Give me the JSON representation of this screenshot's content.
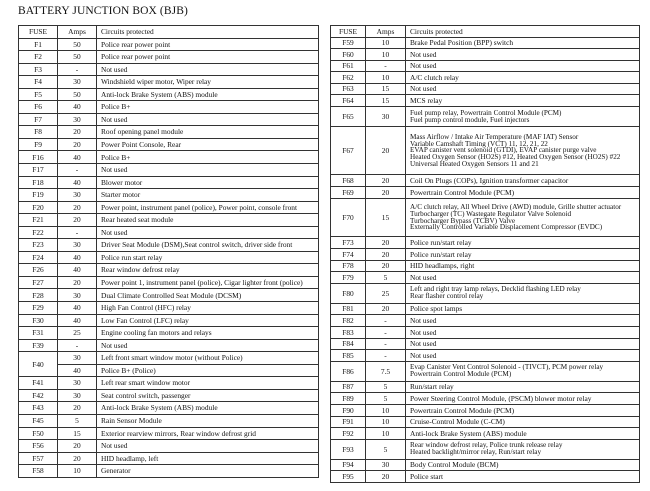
{
  "title": "BATTERY JUNCTION BOX (BJB)",
  "headers": {
    "fuse": "FUSE",
    "amps": "Amps",
    "circuits": "Circuits protected"
  },
  "left_table": [
    {
      "fuse": "F1",
      "amps": "50",
      "circuits": "Police rear power point"
    },
    {
      "fuse": "F2",
      "amps": "50",
      "circuits": "Police rear power point"
    },
    {
      "fuse": "F3",
      "amps": "-",
      "circuits": "Not used"
    },
    {
      "fuse": "F4",
      "amps": "30",
      "circuits": "Windshield wiper motor, Wiper relay"
    },
    {
      "fuse": "F5",
      "amps": "50",
      "circuits": "Anti-lock Brake System (ABS) module"
    },
    {
      "fuse": "F6",
      "amps": "40",
      "circuits": "Police B+"
    },
    {
      "fuse": "F7",
      "amps": "30",
      "circuits": "Not used"
    },
    {
      "fuse": "F8",
      "amps": "20",
      "circuits": "Roof opening panel module"
    },
    {
      "fuse": "F9",
      "amps": "20",
      "circuits": "Power Point Console, Rear"
    },
    {
      "fuse": "F16",
      "amps": "40",
      "circuits": "Police B+"
    },
    {
      "fuse": "F17",
      "amps": "-",
      "circuits": "Not used"
    },
    {
      "fuse": "F18",
      "amps": "40",
      "circuits": "Blower motor"
    },
    {
      "fuse": "F19",
      "amps": "30",
      "circuits": "Starter motor"
    },
    {
      "fuse": "F20",
      "amps": "20",
      "circuits": "Power point, instrument panel (police), Power point, console front"
    },
    {
      "fuse": "F21",
      "amps": "20",
      "circuits": "Rear heated seat module"
    },
    {
      "fuse": "F22",
      "amps": "-",
      "circuits": "Not used"
    },
    {
      "fuse": "F23",
      "amps": "30",
      "circuits": "Driver Seat Module (DSM),Seat control switch, driver side front"
    },
    {
      "fuse": "F24",
      "amps": "40",
      "circuits": "Police run start relay"
    },
    {
      "fuse": "F26",
      "amps": "40",
      "circuits": "Rear window defrost relay"
    },
    {
      "fuse": "F27",
      "amps": "20",
      "circuits": "Power point 1, instrument panel (police), Cigar lighter front (police)"
    },
    {
      "fuse": "F28",
      "amps": "30",
      "circuits": "Dual Climate Controlled Seat Module (DCSM)"
    },
    {
      "fuse": "F29",
      "amps": "40",
      "circuits": "High Fan Control (HFC) relay"
    },
    {
      "fuse": "F30",
      "amps": "40",
      "circuits": "Low Fan Control (LFC) relay"
    },
    {
      "fuse": "F31",
      "amps": "25",
      "circuits": "Engine cooling fan motors and relays"
    },
    {
      "fuse": "F39",
      "amps": "-",
      "circuits": "Not used"
    },
    {
      "fuse": "F40",
      "sub": [
        {
          "amps": "30",
          "circuits": "Left front smart window motor (without Police)"
        },
        {
          "amps": "40",
          "circuits": "Police B+ (Police)"
        }
      ]
    },
    {
      "fuse": "F41",
      "amps": "30",
      "circuits": "Left rear smart window motor"
    },
    {
      "fuse": "F42",
      "amps": "30",
      "circuits": "Seat control switch, passenger"
    },
    {
      "fuse": "F43",
      "amps": "20",
      "circuits": "Anti-lock Brake System (ABS) module"
    },
    {
      "fuse": "F45",
      "amps": "5",
      "circuits": "Rain Sensor Module"
    },
    {
      "fuse": "F50",
      "amps": "15",
      "circuits": "Exterior rearview mirrors, Rear window defrost grid"
    },
    {
      "fuse": "F56",
      "amps": "20",
      "circuits": "Not used"
    },
    {
      "fuse": "F57",
      "amps": "20",
      "circuits": "HID headlamp, left"
    },
    {
      "fuse": "F58",
      "amps": "10",
      "circuits": "Generator"
    }
  ],
  "right_table": [
    {
      "fuse": "F59",
      "amps": "10",
      "circuits": [
        "Brake Pedal Position (BPP) switch"
      ]
    },
    {
      "fuse": "F60",
      "amps": "10",
      "circuits": [
        "Not used"
      ]
    },
    {
      "fuse": "F61",
      "amps": "-",
      "circuits": [
        "Not used"
      ]
    },
    {
      "fuse": "F62",
      "amps": "10",
      "circuits": [
        "A/C clutch relay"
      ]
    },
    {
      "fuse": "F63",
      "amps": "15",
      "circuits": [
        "Not used"
      ]
    },
    {
      "fuse": "F64",
      "amps": "15",
      "circuits": [
        "MCS relay"
      ]
    },
    {
      "fuse": "F65",
      "amps": "30",
      "circuits": [
        "Fuel pump relay, Powertrain Control Module (PCM)",
        "Fuel pump control module, Fuel injectors"
      ]
    },
    {
      "fuse": "F67",
      "amps": "20",
      "circuits": [
        "Mass Airflow / Intake Air Temperature (MAF IAT) Sensor",
        "Variable Camshaft Timing (VCT) 11, 12, 21, 22",
        "EVAP canister vent solenoid (GTDI), EVAP canister purge valve",
        "Heated Oxygen Sensor (HO2S) #12, Heated Oxygen Sensor (HO2S) #22",
        "Universal Heated Oxygen Sensors 11 and 21"
      ]
    },
    {
      "fuse": "F68",
      "amps": "20",
      "circuits": [
        "Coil On Plugs (COPs), Ignition transformer capacitor"
      ]
    },
    {
      "fuse": "F69",
      "amps": "20",
      "circuits": [
        "Powertrain Control Module (PCM)"
      ]
    },
    {
      "fuse": "F70",
      "amps": "15",
      "circuits": [
        "A/C clutch relay, All Wheel Drive (AWD) module, Grille shutter actuator",
        "Turbocharger (TC) Wastegate Regulator Valve Solenoid",
        "Turbocharger Bypass (TCBV) Valve",
        "Externally Controlled Variable Displacement Compressor (EVDC)"
      ]
    },
    {
      "fuse": "F73",
      "amps": "20",
      "circuits": [
        "Police run/start relay"
      ]
    },
    {
      "fuse": "F74",
      "amps": "20",
      "circuits": [
        "Police run/start relay"
      ]
    },
    {
      "fuse": "F78",
      "amps": "20",
      "circuits": [
        "HID headlamps, right"
      ]
    },
    {
      "fuse": "F79",
      "amps": "5",
      "circuits": [
        "Not used"
      ]
    },
    {
      "fuse": "F80",
      "amps": "25",
      "circuits": [
        "Left and right tray lamp relays, Decklid flashing LED relay",
        "Rear flasher control relay"
      ]
    },
    {
      "fuse": "F81",
      "amps": "20",
      "circuits": [
        "Police spot lamps"
      ]
    },
    {
      "fuse": "F82",
      "amps": "-",
      "circuits": [
        "Not used"
      ]
    },
    {
      "fuse": "F83",
      "amps": "-",
      "circuits": [
        "Not used"
      ]
    },
    {
      "fuse": "F84",
      "amps": "-",
      "circuits": [
        "Not used"
      ]
    },
    {
      "fuse": "F85",
      "amps": "-",
      "circuits": [
        "Not used"
      ]
    },
    {
      "fuse": "F86",
      "amps": "7.5",
      "circuits": [
        "Evap Canister Vent Control Solenoid - (TIVCT), PCM power relay",
        "Powertrain Control Module (PCM)"
      ]
    },
    {
      "fuse": "F87",
      "amps": "5",
      "circuits": [
        "Run/start relay"
      ]
    },
    {
      "fuse": "F89",
      "amps": "5",
      "circuits": [
        "Power Steering Control Module, (PSCM) blower motor relay"
      ]
    },
    {
      "fuse": "F90",
      "amps": "10",
      "circuits": [
        "Powertrain Control Module (PCM)"
      ]
    },
    {
      "fuse": "F91",
      "amps": "10",
      "circuits": [
        "Cruise-Control Module (C-CM)"
      ]
    },
    {
      "fuse": "F92",
      "amps": "10",
      "circuits": [
        "Anti-lock Brake System (ABS) module"
      ]
    },
    {
      "fuse": "F93",
      "amps": "5",
      "circuits": [
        "Rear window defrost relay, Police trunk release relay",
        "Heated backlight/mirror relay, Run/start relay"
      ]
    },
    {
      "fuse": "F94",
      "amps": "30",
      "circuits": [
        "Body Control Module (BCM)"
      ]
    },
    {
      "fuse": "F95",
      "amps": "20",
      "circuits": [
        "Police start"
      ]
    }
  ]
}
